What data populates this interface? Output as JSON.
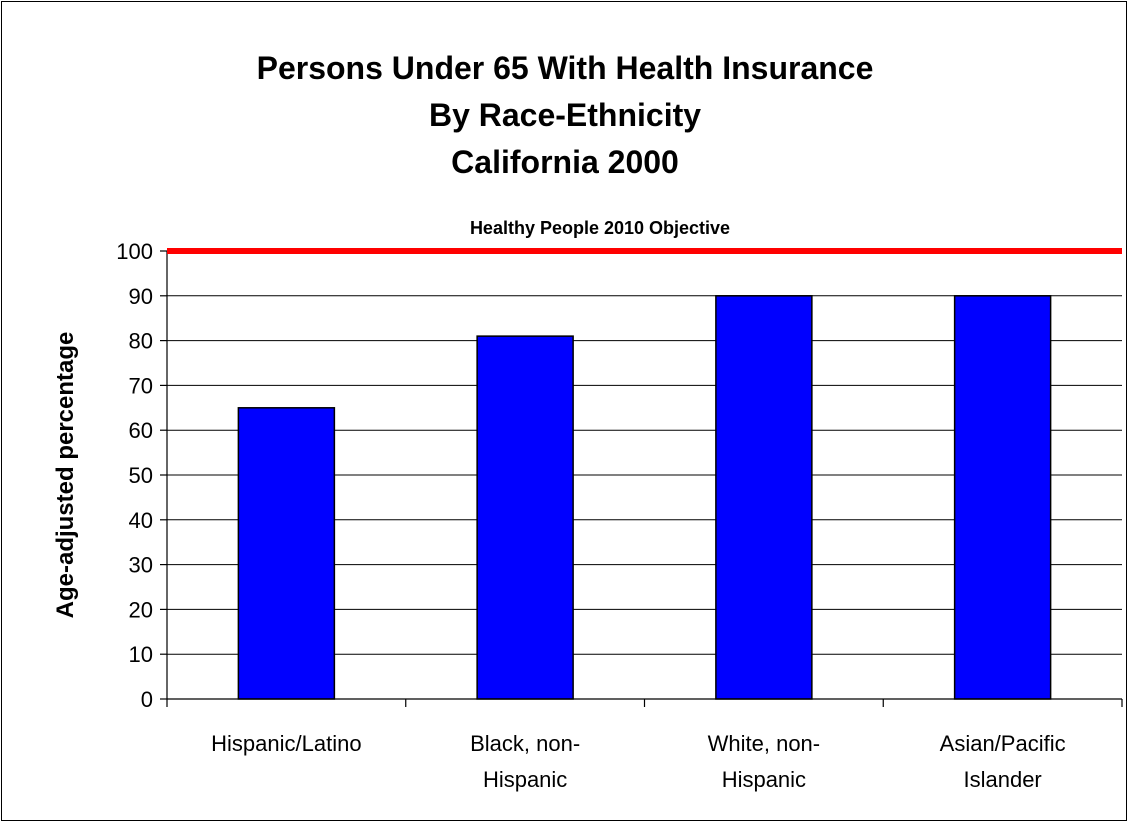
{
  "chart_data": {
    "type": "bar",
    "title_lines": [
      "Persons Under 65 With Health Insurance",
      "By Race-Ethnicity",
      "California 2000"
    ],
    "ylabel": "Age-adjusted percentage",
    "xlabel": "",
    "categories": [
      [
        "Hispanic/Latino"
      ],
      [
        "Black, non-",
        "Hispanic"
      ],
      [
        "White, non-",
        "Hispanic"
      ],
      [
        "Asian/Pacific",
        "Islander"
      ]
    ],
    "values": [
      65,
      81,
      90,
      90
    ],
    "ylim": [
      0,
      100
    ],
    "yticks": [
      0,
      10,
      20,
      30,
      40,
      50,
      60,
      70,
      80,
      90,
      100
    ],
    "grid": true,
    "objective": {
      "label": "Healthy People 2010 Objective",
      "value": 100,
      "color": "#ff0000"
    },
    "bar_color": "#0000ff"
  }
}
